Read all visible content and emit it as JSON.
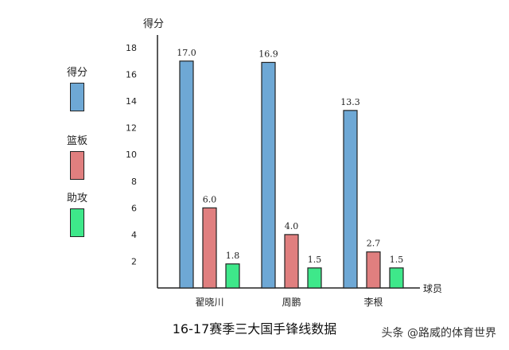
{
  "chart_data": {
    "type": "bar",
    "title": "16-17赛季三大国手锋线数据",
    "xlabel": "球员",
    "ylabel": "得分",
    "categories": [
      "翟晓川",
      "周鹏",
      "李根"
    ],
    "series": [
      {
        "name": "得分",
        "values": [
          17.0,
          16.9,
          13.3
        ],
        "color": "#6ea8d5"
      },
      {
        "name": "篮板",
        "values": [
          6.0,
          4.0,
          2.7
        ],
        "color": "#e07f7f"
      },
      {
        "name": "助攻",
        "values": [
          1.8,
          1.5,
          1.5
        ],
        "color": "#3ee88a"
      }
    ],
    "ylim": [
      0,
      18
    ],
    "yticks": [
      2,
      4,
      6,
      8,
      10,
      12,
      14,
      16,
      18
    ],
    "grid": false,
    "legend_position": "left"
  },
  "watermark": "头条 @路威的体育世界",
  "colors": {
    "axis": "#222222",
    "bar_stroke": "#222222"
  }
}
